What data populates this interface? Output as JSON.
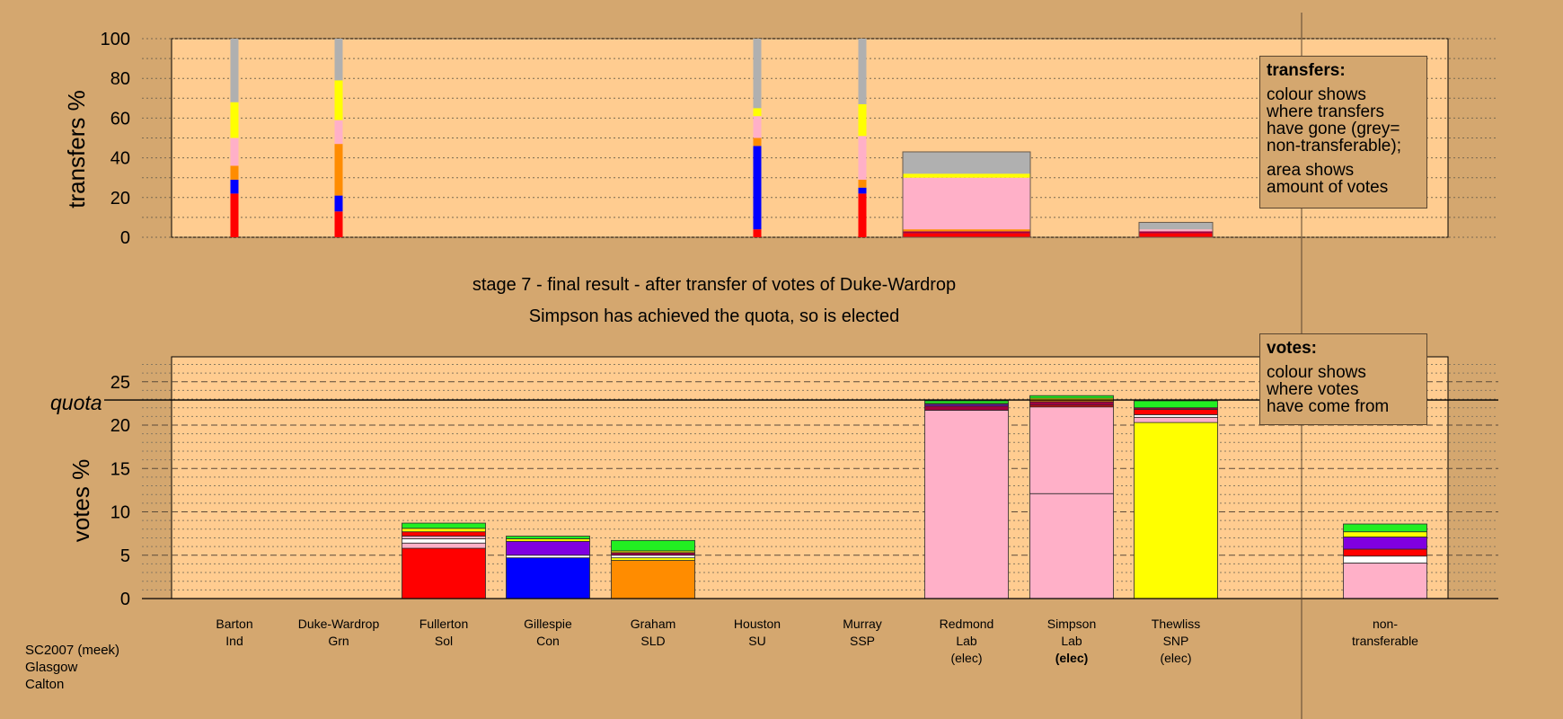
{
  "source": [
    "SC2007 (meek)",
    "Glasgow",
    "Calton"
  ],
  "stage_title": "stage 7 - final result - after transfer of votes of Duke-Wardrop",
  "stage_subtitle": "Simpson has achieved the quota, so is elected",
  "legend_transfers": {
    "title": "transfers:",
    "lines": [
      "colour shows",
      "where transfers",
      "have gone (grey=",
      "non-transferable);"
    ],
    "lines2": [
      "area shows",
      "amount of votes"
    ]
  },
  "legend_votes": {
    "title": "votes:",
    "lines": [
      "colour shows",
      "where votes",
      "have come from"
    ]
  },
  "colors": {
    "background": "#d4a76f",
    "plot": "#ffcc90",
    "red": "#ff0000",
    "blue": "#0000ff",
    "orange": "#ff8c00",
    "pink": "#ffb0c8",
    "yellow": "#ffff00",
    "grey": "#b0b0b0",
    "green": "#22ee22",
    "purple": "#8000e0",
    "maroon": "#a00040",
    "white": "#ffffff"
  },
  "chart_data": [
    {
      "type": "bar",
      "stacked": true,
      "ylabel": "transfers %",
      "ylim": [
        0,
        100
      ],
      "yticks": [
        0,
        20,
        40,
        60,
        80,
        100
      ],
      "categories": [
        "Barton",
        "Duke-Wardrop",
        "Fullerton",
        "Gillespie",
        "Graham",
        "Houston",
        "Murray",
        "Redmond",
        "Simpson",
        "Thewliss",
        "non-transferable"
      ],
      "bars": [
        {
          "candidate": "Barton",
          "segments": [
            {
              "color": "red",
              "value": 22
            },
            {
              "color": "blue",
              "value": 7
            },
            {
              "color": "orange",
              "value": 7
            },
            {
              "color": "pink",
              "value": 14
            },
            {
              "color": "yellow",
              "value": 18
            },
            {
              "color": "grey",
              "value": 32
            }
          ]
        },
        {
          "candidate": "Duke-Wardrop",
          "segments": [
            {
              "color": "red",
              "value": 13
            },
            {
              "color": "blue",
              "value": 8
            },
            {
              "color": "orange",
              "value": 26
            },
            {
              "color": "pink",
              "value": 12
            },
            {
              "color": "yellow",
              "value": 20
            },
            {
              "color": "grey",
              "value": 21
            }
          ]
        },
        {
          "candidate": "Houston",
          "segments": [
            {
              "color": "red",
              "value": 4
            },
            {
              "color": "blue",
              "value": 42
            },
            {
              "color": "orange",
              "value": 4
            },
            {
              "color": "pink",
              "value": 11
            },
            {
              "color": "yellow",
              "value": 4
            },
            {
              "color": "grey",
              "value": 35
            }
          ]
        },
        {
          "candidate": "Murray",
          "segments": [
            {
              "color": "red",
              "value": 22
            },
            {
              "color": "blue",
              "value": 3
            },
            {
              "color": "orange",
              "value": 4
            },
            {
              "color": "pink",
              "value": 22
            },
            {
              "color": "yellow",
              "value": 16
            },
            {
              "color": "grey",
              "value": 33
            }
          ]
        },
        {
          "candidate": "Redmond",
          "segments": [
            {
              "color": "red",
              "value": 2
            },
            {
              "color": "maroon",
              "value": 1
            },
            {
              "color": "orange",
              "value": 1
            },
            {
              "color": "pink",
              "value": 26
            },
            {
              "color": "yellow",
              "value": 2
            },
            {
              "color": "grey",
              "value": 11
            }
          ]
        },
        {
          "candidate": "Thewliss",
          "segments": [
            {
              "color": "red",
              "value": 2
            },
            {
              "color": "maroon",
              "value": 1
            },
            {
              "color": "pink",
              "value": 1
            },
            {
              "color": "grey",
              "value": 3.5
            }
          ]
        }
      ]
    },
    {
      "type": "bar",
      "stacked": true,
      "ylabel": "votes %",
      "ylim": [
        0,
        28
      ],
      "yticks": [
        0,
        5,
        10,
        15,
        20,
        25
      ],
      "quota": 22.9,
      "quota_label": "quota",
      "categories": [
        "Barton",
        "Duke-Wardrop",
        "Fullerton",
        "Gillespie",
        "Graham",
        "Houston",
        "Murray",
        "Redmond",
        "Simpson",
        "Thewliss",
        "non-transferable"
      ],
      "candidates": [
        {
          "name": "Barton",
          "party": "Ind",
          "status": ""
        },
        {
          "name": "Duke-Wardrop",
          "party": "Grn",
          "status": ""
        },
        {
          "name": "Fullerton",
          "party": "Sol",
          "status": ""
        },
        {
          "name": "Gillespie",
          "party": "Con",
          "status": ""
        },
        {
          "name": "Graham",
          "party": "SLD",
          "status": ""
        },
        {
          "name": "Houston",
          "party": "SU",
          "status": ""
        },
        {
          "name": "Murray",
          "party": "SSP",
          "status": ""
        },
        {
          "name": "Redmond",
          "party": "Lab",
          "status": "(elec)"
        },
        {
          "name": "Simpson",
          "party": "Lab",
          "status": "(elec)",
          "status_bold": true
        },
        {
          "name": "Thewliss",
          "party": "SNP",
          "status": "(elec)"
        },
        {
          "name": "non-",
          "party": "transferable",
          "status": ""
        }
      ],
      "bars": [
        {
          "candidate": "Fullerton",
          "segments": [
            {
              "color": "red",
              "value": 5.8
            },
            {
              "color": "pink",
              "value": 0.6
            },
            {
              "color": "white",
              "value": 0.5
            },
            {
              "color": "pink",
              "value": 0.3
            },
            {
              "color": "red",
              "value": 0.5
            },
            {
              "color": "yellow",
              "value": 0.4
            },
            {
              "color": "green",
              "value": 0.6
            }
          ]
        },
        {
          "candidate": "Gillespie",
          "segments": [
            {
              "color": "blue",
              "value": 4.7
            },
            {
              "color": "white",
              "value": 0.3
            },
            {
              "color": "purple",
              "value": 1.6
            },
            {
              "color": "yellow",
              "value": 0.3
            },
            {
              "color": "green",
              "value": 0.3
            }
          ]
        },
        {
          "candidate": "Graham",
          "segments": [
            {
              "color": "orange",
              "value": 4.4
            },
            {
              "color": "yellow",
              "value": 0.3
            },
            {
              "color": "white",
              "value": 0.3
            },
            {
              "color": "maroon",
              "value": 0.3
            },
            {
              "color": "yellow",
              "value": 0.2
            },
            {
              "color": "green",
              "value": 1.2
            }
          ]
        },
        {
          "candidate": "Redmond",
          "segments": [
            {
              "color": "pink",
              "value": 21.7
            },
            {
              "color": "maroon",
              "value": 0.5
            },
            {
              "color": "purple",
              "value": 0.2
            },
            {
              "color": "yellow",
              "value": 0.1
            },
            {
              "color": "green",
              "value": 0.3
            }
          ]
        },
        {
          "candidate": "Simpson",
          "segments": [
            {
              "color": "pink",
              "value": 12.1
            },
            {
              "color": "pink",
              "value": 10.0
            },
            {
              "color": "red",
              "value": 0.2
            },
            {
              "color": "maroon",
              "value": 0.4
            },
            {
              "color": "orange",
              "value": 0.2
            },
            {
              "color": "yellow",
              "value": 0.2
            },
            {
              "color": "green",
              "value": 0.3
            }
          ]
        },
        {
          "candidate": "Thewliss",
          "segments": [
            {
              "color": "yellow",
              "value": 20.3
            },
            {
              "color": "pink",
              "value": 0.6
            },
            {
              "color": "white",
              "value": 0.3
            },
            {
              "color": "red",
              "value": 0.6
            },
            {
              "color": "maroon",
              "value": 0.2
            },
            {
              "color": "green",
              "value": 0.8
            }
          ]
        },
        {
          "candidate": "non-transferable",
          "segments": [
            {
              "color": "pink",
              "value": 4.1
            },
            {
              "color": "white",
              "value": 0.8
            },
            {
              "color": "red",
              "value": 0.8
            },
            {
              "color": "purple",
              "value": 1.4
            },
            {
              "color": "yellow",
              "value": 0.6
            },
            {
              "color": "green",
              "value": 0.9
            }
          ]
        }
      ]
    }
  ]
}
